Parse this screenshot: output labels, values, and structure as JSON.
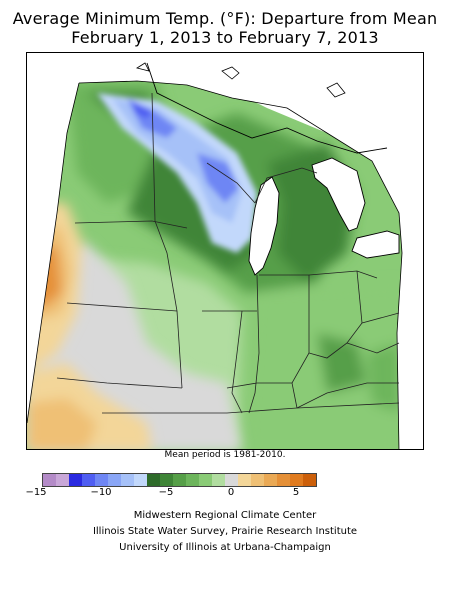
{
  "title_line1": "Average Minimum Temp. (°F): Departure from Mean",
  "title_line2": "February 1, 2013 to February 7, 2013",
  "mean_note": "Mean period is 1981-2010.",
  "legend": {
    "colors": [
      "#b48bc8",
      "#c9a7d8",
      "#2a2ae0",
      "#4f5ef2",
      "#6e86f4",
      "#8aa6f6",
      "#a6c1f8",
      "#c2d8fb",
      "#2e6b2a",
      "#3f8537",
      "#569f48",
      "#6db55c",
      "#8acb76",
      "#b1dda0",
      "#d9d9d9",
      "#f3d699",
      "#efc075",
      "#eaa955",
      "#e59038",
      "#e07b1f",
      "#cc5f0a"
    ],
    "ticks": [
      {
        "label": "−15",
        "value": -15
      },
      {
        "label": "−10",
        "value": -10
      },
      {
        "label": "−5",
        "value": -5
      },
      {
        "label": "0",
        "value": 0
      },
      {
        "label": "5",
        "value": 5
      }
    ]
  },
  "credits": [
    "Midwestern Regional Climate Center",
    "Illinois State Water Survey, Prairie Research Institute",
    "University of Illinois at Urbana-Champaign"
  ]
}
